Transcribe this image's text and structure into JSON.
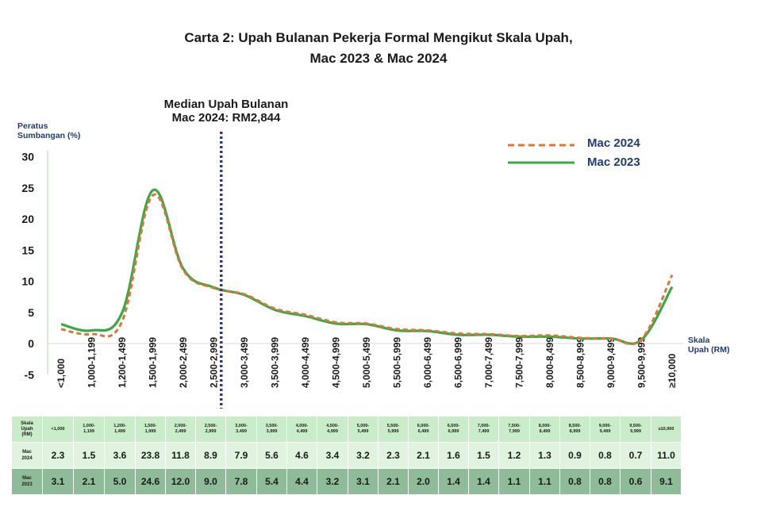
{
  "chart_data": {
    "type": "line",
    "title": "Carta 2: Upah Bulanan Pekerja Formal Mengikut Skala Upah,",
    "subtitle": "Mac 2023 & Mac 2024",
    "ylabel": [
      "Peratus",
      "Sumbangan (%)"
    ],
    "xlabel": [
      "Skala",
      "Upah (RM)"
    ],
    "ylim": [
      -5,
      30
    ],
    "yticks": [
      "30",
      "25",
      "20",
      "15",
      "10",
      "5",
      "0",
      "-5"
    ],
    "categories": [
      "<1,000",
      "1,000-1,199",
      "1,200-1,499",
      "1,500-1,999",
      "2,000-2,499",
      "2,500-2,999",
      "3,000-3,499",
      "3,500-3,999",
      "4,000-4,499",
      "4,500-4,999",
      "5,000-5,499",
      "5,500-5,999",
      "6,000-6,499",
      "6,500-6,999",
      "7,000-7,499",
      "7,500-7,999",
      "8,000-8,499",
      "8,500-8,999",
      "9,000-9,499",
      "9,500-9,999",
      "≥10,000"
    ],
    "series": [
      {
        "name": "Mac 2024",
        "color": "#d9773a",
        "style": "dashed",
        "values": [
          2.3,
          1.5,
          3.6,
          23.8,
          11.8,
          8.9,
          7.9,
          5.6,
          4.6,
          3.4,
          3.2,
          2.3,
          2.1,
          1.6,
          1.5,
          1.2,
          1.3,
          0.9,
          0.8,
          0.7,
          11.0
        ]
      },
      {
        "name": "Mac 2023",
        "color": "#3aa845",
        "style": "solid",
        "values": [
          3.1,
          2.1,
          5.0,
          24.6,
          12.0,
          9.0,
          7.8,
          5.4,
          4.4,
          3.2,
          3.1,
          2.1,
          2.0,
          1.4,
          1.4,
          1.1,
          1.1,
          0.8,
          0.8,
          0.6,
          9.1
        ]
      }
    ],
    "annotation": {
      "line1": "Median Upah Bulanan",
      "line2": "Mac 2024: RM2,844",
      "value": 2844
    },
    "legend": "top-right",
    "grid": false
  },
  "table": {
    "row_header_label": [
      "Skala",
      "Upah",
      "(RM)"
    ],
    "header": [
      [
        "<1,000"
      ],
      [
        "1,000-",
        "1,199"
      ],
      [
        "1,200-",
        "1,499"
      ],
      [
        "1,500-",
        "1,999"
      ],
      [
        "2,000-",
        "2,499"
      ],
      [
        "2,500-",
        "2,999"
      ],
      [
        "3,000-",
        "3,499"
      ],
      [
        "3,500-",
        "3,999"
      ],
      [
        "4,000-",
        "4,499"
      ],
      [
        "4,500-",
        "4,999"
      ],
      [
        "5,000-",
        "5,499"
      ],
      [
        "5,500-",
        "5,999"
      ],
      [
        "6,000-",
        "6,499"
      ],
      [
        "6,500-",
        "6,999"
      ],
      [
        "7,000-",
        "7,499"
      ],
      [
        "7,500-",
        "7,999"
      ],
      [
        "8,000-",
        "8,499"
      ],
      [
        "8,500-",
        "8,999"
      ],
      [
        "9,000-",
        "9,499"
      ],
      [
        "9,500-",
        "9,999"
      ],
      [
        "≥10,000"
      ]
    ],
    "rows": [
      {
        "label": [
          "Mac",
          "2024"
        ],
        "values": [
          "2.3",
          "1.5",
          "3.6",
          "23.8",
          "11.8",
          "8.9",
          "7.9",
          "5.6",
          "4.6",
          "3.4",
          "3.2",
          "2.3",
          "2.1",
          "1.6",
          "1.5",
          "1.2",
          "1.3",
          "0.9",
          "0.8",
          "0.7",
          "11.0"
        ]
      },
      {
        "label": [
          "Mac",
          "2023"
        ],
        "values": [
          "3.1",
          "2.1",
          "5.0",
          "24.6",
          "12.0",
          "9.0",
          "7.8",
          "5.4",
          "4.4",
          "3.2",
          "3.1",
          "2.1",
          "2.0",
          "1.4",
          "1.4",
          "1.1",
          "1.1",
          "0.8",
          "0.8",
          "0.6",
          "9.1"
        ]
      }
    ]
  }
}
